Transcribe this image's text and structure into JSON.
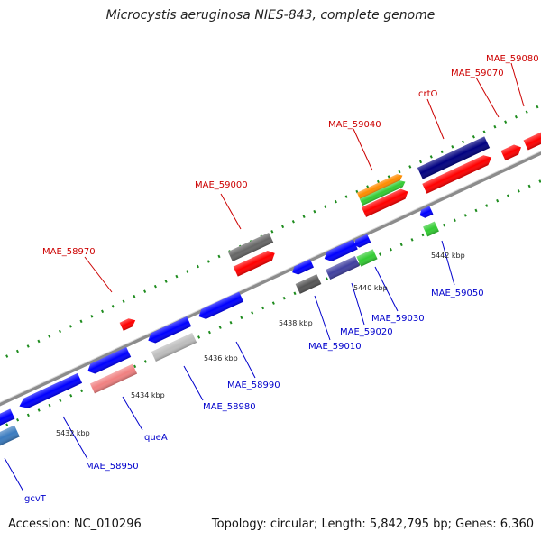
{
  "title": "Microcystis aeruginosa NIES-843, complete genome",
  "footer": {
    "accession": "Accession: NC_010296",
    "summary": "Topology: circular; Length: 5,842,795 bp; Genes: 6,360"
  },
  "colors": {
    "forward_label": "#cc0000",
    "reverse_label": "#0000cc",
    "backbone": "#8c8c8c",
    "ruler_dots": "#1e8c1e"
  },
  "tick_labels": [
    "5432 kbp",
    "5434 kbp",
    "5436 kbp",
    "5438 kbp",
    "5440 kbp",
    "5442 kbp"
  ],
  "forward_labels": [
    "MAE_58970",
    "MAE_59000",
    "MAE_59040",
    "crtO",
    "MAE_59070",
    "MAE_59080"
  ],
  "reverse_labels": [
    "gcvT",
    "MAE_58950",
    "queA",
    "MAE_58980",
    "MAE_58990",
    "MAE_59010",
    "MAE_59020",
    "MAE_59030",
    "MAE_59050"
  ]
}
